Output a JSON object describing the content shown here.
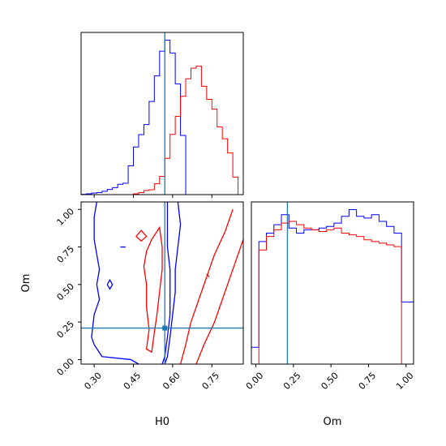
{
  "figure": {
    "type": "corner-plot",
    "truth_color": "#1f77b4",
    "series_colors": [
      "#0000ff",
      "#ff0000"
    ]
  },
  "chart_data": [
    {
      "type": "histogram",
      "panel": "H0 marginal",
      "xlim": [
        0.25,
        0.87
      ],
      "x_tick_labels": [],
      "truth_x": 0.57,
      "series": [
        {
          "color": "#0000ff",
          "bin_edges": [
            0.25,
            0.27,
            0.29,
            0.31,
            0.33,
            0.35,
            0.37,
            0.39,
            0.41,
            0.43,
            0.45,
            0.47,
            0.49,
            0.51,
            0.53,
            0.55,
            0.57,
            0.59,
            0.61,
            0.63,
            0.65
          ],
          "counts": [
            0.1,
            0.3,
            0.6,
            0.8,
            1.3,
            2.0,
            2.7,
            4.0,
            4.4,
            11.2,
            18.5,
            23.3,
            27.2,
            36.2,
            46.1,
            55.7,
            60.0,
            55.0,
            43.0,
            23.0,
            0.0
          ]
        },
        {
          "color": "#ff0000",
          "bin_edges": [
            0.43,
            0.45,
            0.47,
            0.49,
            0.51,
            0.53,
            0.55,
            0.57,
            0.59,
            0.61,
            0.63,
            0.65,
            0.67,
            0.69,
            0.71,
            0.73,
            0.75,
            0.77,
            0.79,
            0.81,
            0.83,
            0.85,
            0.87
          ],
          "counts": [
            0.0,
            0.3,
            0.8,
            1.6,
            1.9,
            4.2,
            7.1,
            14.1,
            23.4,
            30.4,
            38.2,
            45.0,
            49.1,
            49.9,
            42.1,
            37.0,
            33.2,
            26.3,
            21.7,
            16.2,
            6.8,
            0.0
          ]
        }
      ]
    },
    {
      "type": "contour",
      "panel": "H0 vs Om",
      "xlabel": "H0",
      "ylabel": "Om",
      "xlim": [
        0.25,
        0.87
      ],
      "ylim": [
        -0.03,
        1.05
      ],
      "x_tick_labels": [
        "0.30",
        "0.45",
        "0.60",
        "0.75"
      ],
      "y_tick_labels": [
        "0.00",
        "0.25",
        "0.50",
        "0.75",
        "1.00"
      ],
      "truth_point": [
        0.57,
        0.21
      ],
      "series": [
        {
          "color": "#0000ff",
          "outer_contour": [
            [
              0.31,
              1.05
            ],
            [
              0.3,
              0.95
            ],
            [
              0.3,
              0.8
            ],
            [
              0.31,
              0.7
            ],
            [
              0.32,
              0.6
            ],
            [
              0.31,
              0.5
            ],
            [
              0.32,
              0.4
            ],
            [
              0.3,
              0.3
            ],
            [
              0.29,
              0.15
            ],
            [
              0.3,
              0.1
            ],
            [
              0.33,
              0.02
            ],
            [
              0.44,
              0.0
            ],
            [
              0.47,
              -0.03
            ]
          ],
          "inner_contour": [
            [
              0.58,
              1.05
            ],
            [
              0.58,
              0.9
            ],
            [
              0.58,
              0.75
            ],
            [
              0.59,
              0.6
            ],
            [
              0.59,
              0.45
            ],
            [
              0.59,
              0.3
            ],
            [
              0.58,
              0.15
            ],
            [
              0.57,
              0.02
            ],
            [
              0.56,
              -0.03
            ]
          ],
          "right_contour": [
            [
              0.62,
              1.05
            ],
            [
              0.63,
              0.9
            ],
            [
              0.62,
              0.75
            ],
            [
              0.61,
              0.6
            ],
            [
              0.61,
              0.45
            ],
            [
              0.6,
              0.3
            ],
            [
              0.59,
              0.15
            ],
            [
              0.58,
              0.02
            ],
            [
              0.57,
              -0.03
            ]
          ]
        },
        {
          "color": "#ff0000",
          "outer_contour": [
            [
              0.88,
              0.85
            ],
            [
              0.85,
              0.7
            ],
            [
              0.82,
              0.55
            ],
            [
              0.79,
              0.4
            ],
            [
              0.76,
              0.25
            ],
            [
              0.72,
              0.1
            ],
            [
              0.69,
              -0.03
            ]
          ],
          "inner_contour": [
            [
              0.83,
              1.0
            ],
            [
              0.8,
              0.85
            ],
            [
              0.76,
              0.7
            ],
            [
              0.73,
              0.55
            ],
            [
              0.7,
              0.4
            ],
            [
              0.67,
              0.25
            ],
            [
              0.65,
              0.1
            ],
            [
              0.63,
              -0.03
            ]
          ],
          "closed_contour": [
            [
              0.52,
              0.8
            ],
            [
              0.55,
              0.88
            ],
            [
              0.56,
              0.75
            ],
            [
              0.56,
              0.6
            ],
            [
              0.55,
              0.45
            ],
            [
              0.54,
              0.3
            ],
            [
              0.53,
              0.18
            ],
            [
              0.52,
              0.05
            ],
            [
              0.5,
              0.07
            ],
            [
              0.51,
              0.2
            ],
            [
              0.5,
              0.35
            ],
            [
              0.5,
              0.5
            ],
            [
              0.49,
              0.62
            ],
            [
              0.5,
              0.72
            ],
            [
              0.52,
              0.8
            ]
          ]
        }
      ]
    },
    {
      "type": "histogram",
      "panel": "Om marginal",
      "xlabel": "Om",
      "xlim": [
        -0.03,
        1.05
      ],
      "x_tick_labels": [
        "0.00",
        "0.25",
        "0.50",
        "0.75",
        "1.00"
      ],
      "truth_x": 0.21,
      "series": [
        {
          "color": "#0000ff",
          "bin_edges": [
            -0.03,
            0.02,
            0.07,
            0.12,
            0.17,
            0.22,
            0.27,
            0.32,
            0.37,
            0.42,
            0.47,
            0.52,
            0.57,
            0.62,
            0.67,
            0.72,
            0.77,
            0.82,
            0.87,
            0.92,
            0.97,
            1.02,
            1.05
          ],
          "counts": [
            0.1,
            0.73,
            0.78,
            0.83,
            0.89,
            0.81,
            0.78,
            0.8,
            0.8,
            0.81,
            0.82,
            0.84,
            0.88,
            0.92,
            0.88,
            0.87,
            0.89,
            0.85,
            0.82,
            0.78,
            0.37,
            0.37
          ]
        },
        {
          "color": "#ff0000",
          "bin_edges": [
            -0.03,
            0.02,
            0.07,
            0.12,
            0.17,
            0.22,
            0.27,
            0.32,
            0.37,
            0.42,
            0.47,
            0.52,
            0.57,
            0.62,
            0.67,
            0.72,
            0.77,
            0.82,
            0.87,
            0.92,
            0.97,
            1.02
          ],
          "counts": [
            0.0,
            0.68,
            0.76,
            0.8,
            0.84,
            0.85,
            0.83,
            0.81,
            0.8,
            0.79,
            0.8,
            0.81,
            0.78,
            0.77,
            0.76,
            0.74,
            0.73,
            0.72,
            0.71,
            0.7,
            0.0
          ]
        }
      ]
    }
  ]
}
